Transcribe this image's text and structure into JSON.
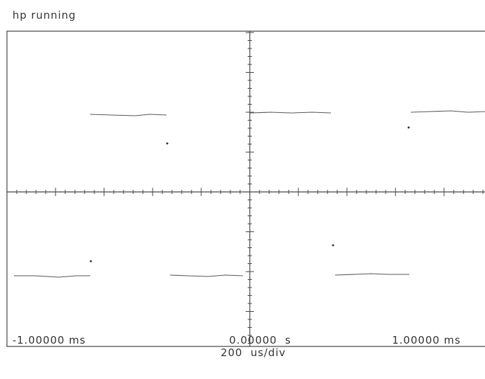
{
  "header": {
    "title": "hp running"
  },
  "axis": {
    "left": "-1.00000 ms",
    "center": "0.00000  s",
    "right": "1.00000 ms",
    "scale": "200  us/div"
  }
}
